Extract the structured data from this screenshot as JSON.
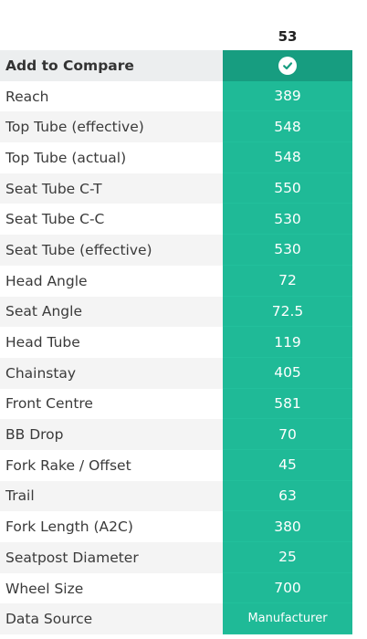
{
  "header": {
    "size": "53"
  },
  "compare": {
    "label": "Add to Compare",
    "checked": true
  },
  "rows": [
    {
      "label": "Reach",
      "value": "389"
    },
    {
      "label": "Top Tube (effective)",
      "value": "548"
    },
    {
      "label": "Top Tube (actual)",
      "value": "548"
    },
    {
      "label": "Seat Tube C-T",
      "value": "550"
    },
    {
      "label": "Seat Tube C-C",
      "value": "530"
    },
    {
      "label": "Seat Tube (effective)",
      "value": "530"
    },
    {
      "label": "Head Angle",
      "value": "72"
    },
    {
      "label": "Seat Angle",
      "value": "72.5"
    },
    {
      "label": "Head Tube",
      "value": "119"
    },
    {
      "label": "Chainstay",
      "value": "405"
    },
    {
      "label": "Front Centre",
      "value": "581"
    },
    {
      "label": "BB Drop",
      "value": "70"
    },
    {
      "label": "Fork Rake / Offset",
      "value": "45"
    },
    {
      "label": "Trail",
      "value": "63"
    },
    {
      "label": "Fork Length (A2C)",
      "value": "380"
    },
    {
      "label": "Seatpost Diameter",
      "value": "25"
    },
    {
      "label": "Wheel Size",
      "value": "700"
    },
    {
      "label": "Data Source",
      "value": "Manufacturer"
    }
  ],
  "colors": {
    "accent": "#1fba97",
    "accent_dark": "#179d80",
    "row_alt": "#f4f4f4"
  }
}
